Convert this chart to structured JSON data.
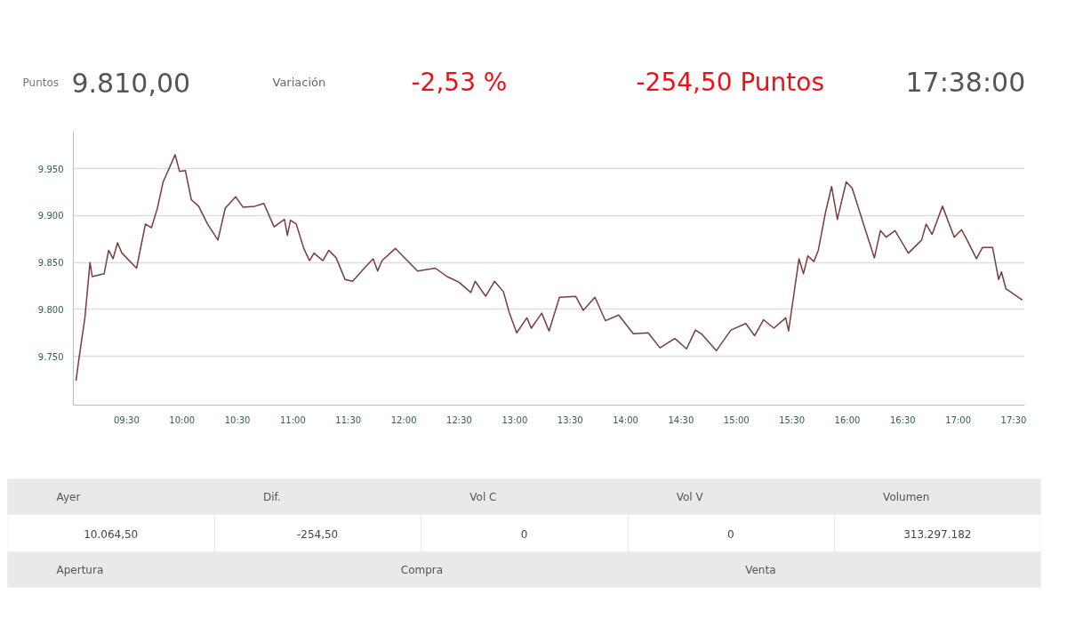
{
  "chart_data": {
    "type": "line",
    "x": [
      9.044,
      9.07,
      9.124,
      9.17,
      9.19,
      9.298,
      9.338,
      9.378,
      9.418,
      9.458,
      9.59,
      9.67,
      9.724,
      9.778,
      9.83,
      9.938,
      9.978,
      10.03,
      10.084,
      10.15,
      10.23,
      10.324,
      10.39,
      10.484,
      10.55,
      10.658,
      10.738,
      10.83,
      10.924,
      10.95,
      10.978,
      11.03,
      11.098,
      11.15,
      11.19,
      11.27,
      11.324,
      11.39,
      11.47,
      11.538,
      11.644,
      11.724,
      11.764,
      11.804,
      11.924,
      11.99,
      12.124,
      12.284,
      12.39,
      12.498,
      12.604,
      12.644,
      12.738,
      12.818,
      12.898,
      12.95,
      13.018,
      13.11,
      13.15,
      13.244,
      13.31,
      13.404,
      13.55,
      13.618,
      13.724,
      13.818,
      13.938,
      14.07,
      14.204,
      14.31,
      14.444,
      14.55,
      14.63,
      14.684,
      14.818,
      14.95,
      15.084,
      15.164,
      15.244,
      15.338,
      15.444,
      15.47,
      15.564,
      15.604,
      15.644,
      15.698,
      15.738,
      15.804,
      15.858,
      15.91,
      15.99,
      16.044,
      16.178,
      16.244,
      16.298,
      16.35,
      16.43,
      16.55,
      16.67,
      16.71,
      16.764,
      16.858,
      16.964,
      17.03,
      17.084,
      17.164,
      17.218,
      17.31,
      17.364,
      17.39,
      17.43,
      17.578
    ],
    "series": [
      {
        "color": "#7a3b3b",
        "values": [
          9724,
          9747,
          9791,
          9850,
          9835,
          9838,
          9863,
          9854,
          9871,
          9860,
          9844,
          9891,
          9887,
          9908,
          9936,
          9965,
          9947,
          9948,
          9917,
          9910,
          9891,
          9874,
          9908,
          9920,
          9909,
          9910,
          9913,
          9888,
          9896,
          9879,
          9895,
          9891,
          9865,
          9852,
          9860,
          9852,
          9863,
          9855,
          9832,
          9830,
          9844,
          9854,
          9841,
          9852,
          9865,
          9857,
          9841,
          9844,
          9835,
          9829,
          9818,
          9830,
          9814,
          9830,
          9819,
          9797,
          9775,
          9791,
          9780,
          9796,
          9777,
          9813,
          9814,
          9799,
          9813,
          9788,
          9794,
          9774,
          9775,
          9759,
          9769,
          9758,
          9778,
          9774,
          9756,
          9778,
          9785,
          9772,
          9789,
          9780,
          9791,
          9777,
          9854,
          9838,
          9857,
          9851,
          9863,
          9904,
          9931,
          9896,
          9936,
          9929,
          9879,
          9855,
          9884,
          9877,
          9884,
          9860,
          9874,
          9891,
          9880,
          9910,
          9877,
          9885,
          9873,
          9854,
          9866,
          9866,
          9832,
          9840,
          9822,
          9810
        ]
      }
    ],
    "xlim": [
      9.02,
      17.6
    ],
    "ylim": [
      9698,
      9990
    ],
    "xticks": [
      {
        "value": 9.5,
        "label": "09:30"
      },
      {
        "value": 10,
        "label": "10:00"
      },
      {
        "value": 10.5,
        "label": "10:30"
      },
      {
        "value": 11,
        "label": "11:00"
      },
      {
        "value": 11.5,
        "label": "11:30"
      },
      {
        "value": 12,
        "label": "12:00"
      },
      {
        "value": 12.5,
        "label": "12:30"
      },
      {
        "value": 13,
        "label": "13:00"
      },
      {
        "value": 13.5,
        "label": "13:30"
      },
      {
        "value": 14,
        "label": "14:00"
      },
      {
        "value": 14.5,
        "label": "14:30"
      },
      {
        "value": 15,
        "label": "15:00"
      },
      {
        "value": 15.5,
        "label": "15:30"
      },
      {
        "value": 16,
        "label": "16:00"
      },
      {
        "value": 16.5,
        "label": "16:30"
      },
      {
        "value": 17,
        "label": "17:00"
      },
      {
        "value": 17.5,
        "label": "17:30"
      }
    ],
    "yticks": [
      {
        "value": 9750,
        "label": "9.750"
      },
      {
        "value": 9800,
        "label": "9.800"
      },
      {
        "value": 9850,
        "label": "9.850"
      },
      {
        "value": 9900,
        "label": "9.900"
      },
      {
        "value": 9950,
        "label": "9.950"
      }
    ],
    "grid": "y",
    "marker": "none",
    "line_style": "solid",
    "annotations": [
      "Puntos",
      "9.810,00",
      "Variación",
      "-2,53 %",
      "-254,50 Puntos",
      "17:38:00",
      "Ayer",
      "Dif.",
      "Vol C",
      "Vol V",
      "Volumen",
      "10.064,50",
      "-254,50",
      "0",
      "0",
      "313.297.182",
      "Apertura",
      "Compra",
      "Venta"
    ]
  }
}
